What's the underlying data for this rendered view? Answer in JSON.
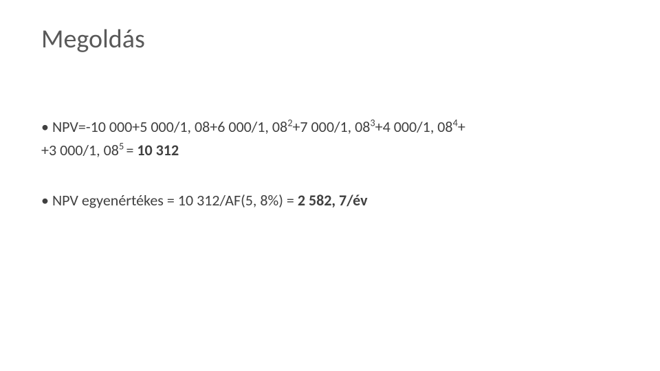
{
  "slide": {
    "title": "Megoldás",
    "title_color": "#595959",
    "title_fontsize": 38,
    "body_color": "#404040",
    "body_fontsize": 22,
    "background_color": "#ffffff",
    "bullet_char": "•",
    "bold_weight": 700,
    "lines": [
      {
        "bullet": "•",
        "parts": [
          {
            "t": "NPV=-10 000+5 000/1, 08+6 000/1, 08"
          },
          {
            "t": "2",
            "sup": true
          },
          {
            "t": "+7 000/1, 08"
          },
          {
            "t": "3",
            "sup": true
          },
          {
            "t": "+4 000/1, 08"
          },
          {
            "t": "4",
            "sup": true
          },
          {
            "t": "+"
          }
        ]
      },
      {
        "bullet": "",
        "parts": [
          {
            "t": "+3 000/1, 08"
          },
          {
            "t": "5 ",
            "sup": true
          },
          {
            "t": "= "
          },
          {
            "t": "10 312",
            "bold": true
          }
        ],
        "gap_after": true
      },
      {
        "bullet": "•",
        "parts": [
          {
            "t": "NPV egyenértékes = 10 312/AF(5, 8%) = "
          },
          {
            "t": "2 582, 7/év",
            "bold": true
          }
        ]
      }
    ]
  }
}
